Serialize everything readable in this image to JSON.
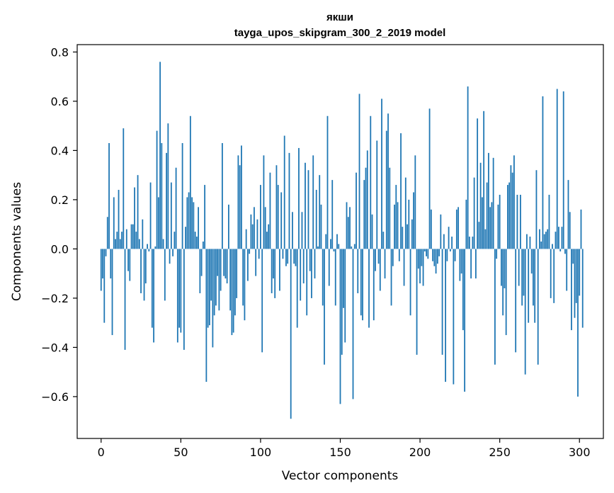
{
  "chart_data": {
    "type": "bar",
    "title": "якши",
    "subtitle": "tayga_upos_skipgram_300_2_2019 model",
    "xlabel": "Vector components",
    "ylabel": "Components values",
    "xlim": [
      -15,
      315
    ],
    "ylim": [
      -0.77,
      0.83
    ],
    "xticks": [
      0,
      50,
      100,
      150,
      200,
      250,
      300
    ],
    "yticks": [
      -0.6,
      -0.4,
      -0.2,
      0.0,
      0.2,
      0.4,
      0.6,
      0.8
    ],
    "ytick_labels": [
      "−0.6",
      "−0.4",
      "−0.2",
      "0.0",
      "0.2",
      "0.4",
      "0.6",
      "0.8"
    ],
    "xtick_labels": [
      "0",
      "50",
      "100",
      "150",
      "200",
      "250",
      "300"
    ],
    "bar_color": "#1f77b4",
    "grid": false,
    "legend": "none",
    "values": [
      -0.17,
      -0.12,
      -0.3,
      -0.03,
      0.13,
      0.43,
      -0.12,
      -0.35,
      0.21,
      0.04,
      0.07,
      0.24,
      0.04,
      0.07,
      0.49,
      -0.41,
      0.08,
      -0.09,
      -0.13,
      0.1,
      0.1,
      0.25,
      0.07,
      0.3,
      0.04,
      -0.18,
      0.12,
      -0.21,
      -0.14,
      0.02,
      -0.01,
      0.27,
      -0.32,
      -0.38,
      0.01,
      0.48,
      0.21,
      0.76,
      0.43,
      0.04,
      -0.21,
      0.39,
      0.51,
      -0.06,
      0.27,
      -0.03,
      0.07,
      0.33,
      -0.38,
      -0.32,
      -0.34,
      0.43,
      -0.41,
      0.09,
      0.21,
      0.23,
      0.54,
      0.21,
      0.19,
      0.07,
      0.05,
      0.17,
      -0.18,
      -0.11,
      0.03,
      0.26,
      -0.54,
      -0.32,
      -0.31,
      -0.21,
      -0.4,
      -0.27,
      -0.23,
      -0.11,
      -0.25,
      -0.17,
      0.43,
      -0.11,
      -0.12,
      -0.14,
      0.18,
      -0.25,
      -0.35,
      -0.34,
      -0.27,
      -0.2,
      0.38,
      0.34,
      0.42,
      -0.23,
      -0.29,
      0.08,
      -0.13,
      -0.02,
      0.14,
      0.1,
      0.17,
      -0.11,
      0.12,
      -0.04,
      0.26,
      -0.42,
      0.38,
      0.17,
      0.07,
      0.1,
      0.31,
      -0.18,
      -0.12,
      -0.2,
      0.34,
      0.26,
      -0.17,
      0.23,
      -0.04,
      0.46,
      -0.07,
      -0.06,
      0.39,
      -0.69,
      0.15,
      -0.06,
      -0.07,
      -0.32,
      0.41,
      -0.21,
      0.15,
      -0.14,
      0.35,
      -0.27,
      0.32,
      -0.09,
      -0.2,
      0.38,
      -0.12,
      0.24,
      0.01,
      0.3,
      0.18,
      -0.23,
      -0.47,
      0.06,
      0.54,
      -0.15,
      0.04,
      0.28,
      -0.01,
      -0.23,
      0.06,
      0.02,
      -0.63,
      -0.43,
      -0.24,
      -0.38,
      0.19,
      0.13,
      0.17,
      0.01,
      -0.61,
      0.02,
      0.31,
      -0.18,
      0.63,
      -0.27,
      -0.29,
      0.28,
      0.33,
      0.4,
      -0.32,
      0.54,
      0.14,
      -0.29,
      -0.09,
      0.44,
      -0.06,
      -0.17,
      0.61,
      0.07,
      -0.12,
      0.48,
      0.55,
      0.33,
      -0.23,
      -0.07,
      0.18,
      0.26,
      0.19,
      -0.05,
      0.47,
      0.09,
      -0.15,
      0.29,
      0.1,
      0.2,
      -0.27,
      0.12,
      0.23,
      0.38,
      -0.43,
      -0.08,
      -0.14,
      -0.07,
      -0.15,
      -0.01,
      -0.03,
      -0.04,
      0.57,
      0.16,
      -0.05,
      -0.07,
      -0.1,
      -0.06,
      -0.03,
      0.14,
      -0.43,
      0.06,
      -0.54,
      -0.05,
      0.09,
      -0.01,
      0.05,
      -0.55,
      -0.05,
      0.16,
      0.17,
      -0.13,
      -0.1,
      -0.33,
      -0.58,
      0.2,
      0.66,
      0.05,
      -0.12,
      0.05,
      0.29,
      -0.12,
      0.53,
      0.11,
      0.35,
      0.21,
      0.56,
      0.08,
      0.27,
      0.39,
      0.17,
      0.19,
      0.37,
      -0.47,
      -0.04,
      0.18,
      0.22,
      -0.15,
      -0.27,
      -0.16,
      -0.35,
      0.26,
      0.27,
      0.34,
      0.31,
      0.38,
      -0.42,
      0.22,
      -0.15,
      0.22,
      -0.23,
      -0.19,
      -0.51,
      0.06,
      -0.3,
      0.05,
      -0.1,
      -0.23,
      -0.3,
      0.32,
      -0.47,
      0.08,
      0.03,
      0.62,
      0.06,
      0.07,
      0.08,
      0.22,
      -0.2,
      0.02,
      -0.22,
      0.07,
      0.65,
      0.09,
      -0.01,
      0.09,
      0.64,
      -0.02,
      -0.17,
      0.28,
      0.15,
      -0.33,
      -0.06,
      -0.28,
      -0.22,
      -0.6,
      -0.19,
      0.16,
      -0.32
    ]
  }
}
